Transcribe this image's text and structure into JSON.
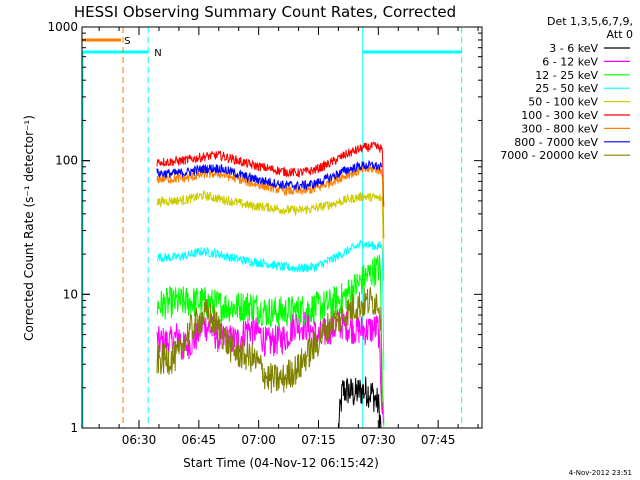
{
  "chart_data": {
    "type": "line",
    "title": "HESSI Observing Summary Count Rates, Corrected",
    "xlabel": "Start Time (04-Nov-12 06:15:42)",
    "ylabel": "Corrected Count Rate (s⁻¹ detector⁻¹)",
    "y_scale": "log",
    "ylim": [
      1,
      1000
    ],
    "xlim_minutes_after_06_00": [
      15.7,
      116.0
    ],
    "x_ticks": [
      {
        "label": "06:30",
        "t": 30
      },
      {
        "label": "06:45",
        "t": 45
      },
      {
        "label": "07:00",
        "t": 60
      },
      {
        "label": "07:15",
        "t": 75
      },
      {
        "label": "07:30",
        "t": 90
      },
      {
        "label": "07:45",
        "t": 105
      }
    ],
    "y_ticks": [
      {
        "label": "1",
        "v": 1
      },
      {
        "label": "10",
        "v": 10
      },
      {
        "label": "100",
        "v": 100
      },
      {
        "label": "1000",
        "v": 1000
      }
    ],
    "legend": {
      "placement": "right",
      "header_line1": "Det 1,3,5,6,7,9,",
      "header_line2": "Att 0"
    },
    "markers": [
      {
        "label": "S",
        "color": "#ff8000"
      },
      {
        "label": "N",
        "color": "#00ffff"
      }
    ],
    "footer_timestamp": "4-Nov-2012 23:51",
    "vertical_lines": [
      {
        "t": 26,
        "color": "#ff8000",
        "style": "dashed"
      },
      {
        "t": 32.3,
        "color": "#00ffff",
        "style": "dashed"
      },
      {
        "t": 86.1,
        "color": "#00ffff",
        "style": "solid"
      },
      {
        "t": 110.9,
        "color": "#00ffff",
        "style": "dashed"
      }
    ],
    "night_bars": [
      {
        "t_start": 15.7,
        "t_end": 32.3,
        "value": 650,
        "color": "#00ffff"
      },
      {
        "t_start": 86.1,
        "t_end": 110.9,
        "value": 650,
        "color": "#00ffff"
      }
    ],
    "saa_bar": {
      "t_start": 15.7,
      "t_end": 25.5,
      "value": 800,
      "color": "#ff8000"
    },
    "data_interval": {
      "t_start": 34.5,
      "t_end": 91.5
    },
    "series": [
      {
        "name": "3 - 6 keV",
        "color": "#000000",
        "values": [
          [
            80.0,
            1.0
          ],
          [
            81.0,
            1.9
          ],
          [
            82.5,
            1.9
          ],
          [
            84.0,
            1.8
          ],
          [
            85.5,
            1.9
          ],
          [
            87.0,
            1.9
          ],
          [
            88.5,
            1.8
          ],
          [
            90.0,
            1.5
          ],
          [
            90.7,
            1.0
          ]
        ]
      },
      {
        "name": "6 - 12 keV",
        "color": "#ff00ff",
        "values": [
          [
            34.5,
            4.4
          ],
          [
            38.0,
            4.4
          ],
          [
            40.0,
            5.0
          ],
          [
            41.0,
            4.0
          ],
          [
            44.0,
            4.6
          ],
          [
            46.0,
            6.0
          ],
          [
            48.0,
            5.5
          ],
          [
            50.0,
            4.7
          ],
          [
            55.0,
            4.5
          ],
          [
            57.0,
            5.6
          ],
          [
            60.0,
            5.2
          ],
          [
            62.0,
            4.3
          ],
          [
            67.0,
            4.8
          ],
          [
            69.0,
            6.0
          ],
          [
            72.0,
            5.8
          ],
          [
            75.0,
            4.8
          ],
          [
            78.0,
            5.5
          ],
          [
            81.0,
            6.0
          ],
          [
            84.0,
            5.5
          ],
          [
            87.0,
            5.4
          ],
          [
            90.0,
            5.6
          ],
          [
            91.0,
            1.4
          ],
          [
            91.5,
            1.0
          ]
        ]
      },
      {
        "name": "12 - 25 keV",
        "color": "#00ff00",
        "values": [
          [
            34.5,
            8.2
          ],
          [
            38.0,
            8.7
          ],
          [
            42.0,
            8.8
          ],
          [
            46.0,
            8.8
          ],
          [
            50.0,
            8.3
          ],
          [
            54.0,
            8.0
          ],
          [
            58.0,
            8.3
          ],
          [
            62.0,
            7.4
          ],
          [
            66.0,
            7.4
          ],
          [
            70.0,
            7.6
          ],
          [
            74.0,
            7.9
          ],
          [
            78.0,
            8.5
          ],
          [
            81.0,
            9.4
          ],
          [
            84.0,
            11.2
          ],
          [
            87.0,
            13.6
          ],
          [
            89.0,
            15.0
          ],
          [
            90.5,
            16.0
          ],
          [
            91.0,
            2.0
          ],
          [
            91.5,
            1.0
          ]
        ]
      },
      {
        "name": "25 - 50 keV",
        "color": "#00ffff",
        "values": [
          [
            34.5,
            19.0
          ],
          [
            38.0,
            18.8
          ],
          [
            42.0,
            19.5
          ],
          [
            46.0,
            21.0
          ],
          [
            50.0,
            20.0
          ],
          [
            54.0,
            18.5
          ],
          [
            58.0,
            17.6
          ],
          [
            62.0,
            17.0
          ],
          [
            66.0,
            16.0
          ],
          [
            70.0,
            15.7
          ],
          [
            74.0,
            16.0
          ],
          [
            78.0,
            18.0
          ],
          [
            82.0,
            21.0
          ],
          [
            86.0,
            24.0
          ],
          [
            89.0,
            23.0
          ],
          [
            91.0,
            23.0
          ],
          [
            91.5,
            1.5
          ]
        ]
      },
      {
        "name": "50 - 100 keV",
        "color": "#cccc00",
        "values": [
          [
            34.5,
            49.0
          ],
          [
            38.0,
            50.0
          ],
          [
            42.0,
            51.0
          ],
          [
            46.0,
            55.0
          ],
          [
            50.0,
            52.0
          ],
          [
            54.0,
            49.0
          ],
          [
            58.0,
            46.0
          ],
          [
            62.0,
            45.0
          ],
          [
            66.0,
            43.0
          ],
          [
            70.0,
            42.5
          ],
          [
            74.0,
            44.0
          ],
          [
            78.0,
            47.0
          ],
          [
            82.0,
            51.0
          ],
          [
            86.0,
            54.0
          ],
          [
            89.0,
            53.0
          ],
          [
            91.0,
            52.0
          ],
          [
            91.5,
            8.0
          ]
        ]
      },
      {
        "name": "100 - 300 keV",
        "color": "#ff0000",
        "values": [
          [
            34.5,
            98.0
          ],
          [
            38.0,
            98.0
          ],
          [
            42.0,
            101.0
          ],
          [
            46.0,
            107.0
          ],
          [
            50.0,
            110.0
          ],
          [
            54.0,
            102.0
          ],
          [
            58.0,
            93.0
          ],
          [
            62.0,
            88.0
          ],
          [
            66.0,
            83.0
          ],
          [
            70.0,
            81.0
          ],
          [
            74.0,
            85.0
          ],
          [
            78.0,
            96.0
          ],
          [
            82.0,
            112.0
          ],
          [
            86.0,
            124.0
          ],
          [
            89.0,
            128.0
          ],
          [
            91.0,
            122.0
          ],
          [
            91.5,
            30.0
          ]
        ]
      },
      {
        "name": "300 - 800 keV",
        "color": "#ff8000",
        "values": [
          [
            34.5,
            73.0
          ],
          [
            38.0,
            73.0
          ],
          [
            42.0,
            74.0
          ],
          [
            46.0,
            79.0
          ],
          [
            50.0,
            80.0
          ],
          [
            54.0,
            74.0
          ],
          [
            58.0,
            68.0
          ],
          [
            62.0,
            64.0
          ],
          [
            66.0,
            60.0
          ],
          [
            70.0,
            59.0
          ],
          [
            74.0,
            61.0
          ],
          [
            78.0,
            69.0
          ],
          [
            82.0,
            78.0
          ],
          [
            86.0,
            85.0
          ],
          [
            89.0,
            87.0
          ],
          [
            91.0,
            83.0
          ],
          [
            91.5,
            20.0
          ]
        ]
      },
      {
        "name": "800 - 7000 keV",
        "color": "#0000ff",
        "values": [
          [
            34.5,
            81.0
          ],
          [
            38.0,
            80.0
          ],
          [
            42.0,
            82.0
          ],
          [
            46.0,
            87.0
          ],
          [
            50.0,
            88.0
          ],
          [
            54.0,
            81.0
          ],
          [
            58.0,
            74.0
          ],
          [
            62.0,
            70.0
          ],
          [
            66.0,
            66.0
          ],
          [
            70.0,
            65.0
          ],
          [
            74.0,
            67.0
          ],
          [
            78.0,
            75.0
          ],
          [
            82.0,
            85.0
          ],
          [
            86.0,
            92.0
          ],
          [
            89.0,
            92.0
          ],
          [
            91.0,
            88.0
          ]
        ]
      },
      {
        "name": "7000 - 20000 keV",
        "color": "#808000",
        "values": [
          [
            34.5,
            3.2
          ],
          [
            38.0,
            3.3
          ],
          [
            40.0,
            3.5
          ],
          [
            42.0,
            5.0
          ],
          [
            45.0,
            6.4
          ],
          [
            47.0,
            7.2
          ],
          [
            49.0,
            6.2
          ],
          [
            51.0,
            5.0
          ],
          [
            53.0,
            4.0
          ],
          [
            55.0,
            3.6
          ],
          [
            58.0,
            3.4
          ],
          [
            60.0,
            3.0
          ],
          [
            62.0,
            2.4
          ],
          [
            64.0,
            2.3
          ],
          [
            66.0,
            2.3
          ],
          [
            68.0,
            2.6
          ],
          [
            70.0,
            2.8
          ],
          [
            72.0,
            3.5
          ],
          [
            74.0,
            4.0
          ],
          [
            76.0,
            5.0
          ],
          [
            78.0,
            6.0
          ],
          [
            80.0,
            6.5
          ],
          [
            82.0,
            7.3
          ],
          [
            84.0,
            8.1
          ],
          [
            86.0,
            8.5
          ],
          [
            88.0,
            8.9
          ],
          [
            90.0,
            9.0
          ],
          [
            90.7,
            6.0
          ],
          [
            91.0,
            1.0
          ]
        ]
      }
    ]
  }
}
